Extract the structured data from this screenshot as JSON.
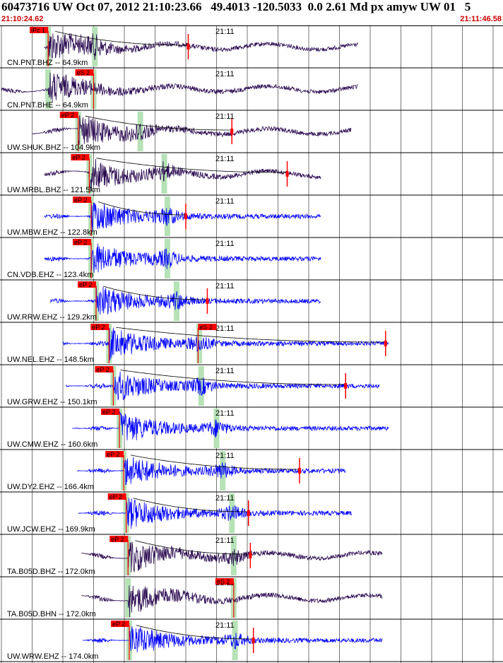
{
  "header": {
    "title": "60473716 UW Oct 07, 2012 21:10:23.66   49.4013 -120.5033  0.0 2.61 Md px amyw UW 01   5",
    "start_time": "21:10:24.62",
    "end_time": "21:11:46.58"
  },
  "colors": {
    "trace_dark": "#2a0a50",
    "trace_blue": "#0000ff",
    "pick": "#ff0000",
    "coda": "#ff0000",
    "phase_band": "#b7e2b7",
    "grid": "#000000"
  },
  "chart_data": {
    "type": "seismogram",
    "time_range": [
      "21:10:24.62",
      "21:11:46.58"
    ],
    "minute_label": "21:11",
    "traces": [
      {
        "label": "CN.PNT.BHZ -- 64.9km",
        "color": "dark",
        "pick": "iPc 1",
        "pick_t": 7.6,
        "coda_t": 30.4,
        "s_t": 15.2,
        "start_t": 7.0,
        "end_t": 58.0
      },
      {
        "label": "CN.PNT.BHE -- 64.9km",
        "color": "dark",
        "pick": "eS 2",
        "pick_t": 15.0,
        "coda_t": null,
        "s_t": 7.6,
        "start_t": 0,
        "end_t": 58.0
      },
      {
        "label": "UW.SHUK.BHZ -- 104.9km",
        "color": "dark",
        "pick": "eP 2",
        "pick_t": 12.5,
        "coda_t": 37.5,
        "s_t": 22.6,
        "start_t": 5.0,
        "end_t": 57.0
      },
      {
        "label": "UW.MRBL.BHZ -- 121.5km",
        "color": "dark",
        "pick": "eP 2",
        "pick_t": 14.3,
        "coda_t": 46.5,
        "s_t": 26.5,
        "start_t": 7.0,
        "end_t": 52.0
      },
      {
        "label": "UW.MBW.EHZ -- 122.8km",
        "color": "blue",
        "pick": "eP 2",
        "pick_t": 14.6,
        "coda_t": 30.0,
        "s_t": 27.0,
        "start_t": 7.0,
        "end_t": 52.0
      },
      {
        "label": "CN.VDB.EHZ -- 123.4km",
        "color": "blue",
        "pick": "eP 2",
        "pick_t": 14.6,
        "coda_t": null,
        "s_t": 27.0,
        "start_t": 7.0,
        "end_t": 52.0
      },
      {
        "label": "UW.RRW.EHZ -- 129.2km",
        "color": "blue",
        "pick": "eP 2",
        "pick_t": 15.4,
        "coda_t": 33.5,
        "s_t": 28.5,
        "start_t": 8.0,
        "end_t": 52.0
      },
      {
        "label": "UW.NEL.EHZ -- 148.5km",
        "color": "blue",
        "pick": "eP 2",
        "pick_t": 17.5,
        "coda_t": 62.5,
        "s_t": 32.2,
        "start_t": 10.0,
        "end_t": 63.0
      },
      {
        "label": "UW.GRW.EHZ -- 150.1km",
        "color": "blue",
        "pick": "eP 2",
        "pick_t": 18.2,
        "coda_t": 56.0,
        "s_t": 32.5,
        "start_t": 10.5,
        "end_t": 61.5
      },
      {
        "label": "UW.CMW.EHZ -- 160.6km",
        "color": "blue",
        "pick": "eP 2",
        "pick_t": 19.2,
        "coda_t": null,
        "s_t": 35.0,
        "start_t": 11.5,
        "end_t": 63.0
      },
      {
        "label": "UW.DY2.EHZ -- 166.4km",
        "color": "blue",
        "pick": "eP 2",
        "pick_t": 19.9,
        "coda_t": 48.5,
        "s_t": 36.0,
        "start_t": 12.3,
        "end_t": 56.0
      },
      {
        "label": "UW.JCW.EHZ -- 169.9km",
        "color": "blue",
        "pick": "eP 2",
        "pick_t": 20.3,
        "coda_t": 40.2,
        "s_t": 37.5,
        "start_t": 12.5,
        "end_t": 57.0
      },
      {
        "label": "TA.B05D.BHZ -- 172.0km",
        "color": "dark",
        "pick": "eP 2",
        "pick_t": 20.6,
        "coda_t": 40.5,
        "s_t": 37.8,
        "start_t": 13.0,
        "end_t": 62.0
      },
      {
        "label": "TA.B05D.BHN -- 172.0km",
        "color": "dark",
        "pick": "eS 2",
        "pick_t": 37.8,
        "coda_t": null,
        "s_t": 20.6,
        "start_t": 13.0,
        "end_t": 62.0
      },
      {
        "label": "UW.WRW.EHZ -- 174.0km",
        "color": "blue",
        "pick": "eP 2",
        "pick_t": 20.8,
        "coda_t": 41.0,
        "s_t": 38.0,
        "start_t": 13.2,
        "end_t": 62.0
      }
    ],
    "extra_picks": [
      {
        "trace": 7,
        "label": "eS 2",
        "t": 32.0
      }
    ]
  }
}
